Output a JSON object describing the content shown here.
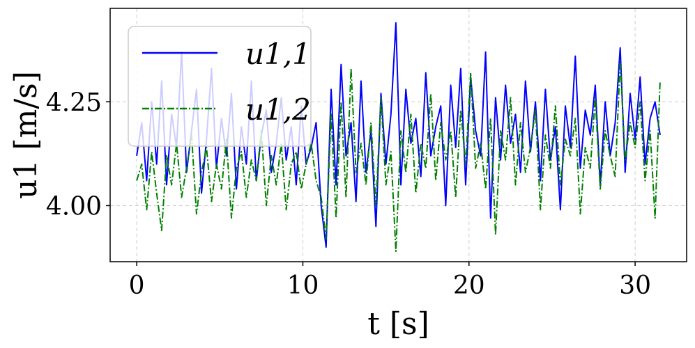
{
  "chart_data": {
    "type": "line",
    "title": "",
    "xlabel": "t [s]",
    "ylabel": "u1 [m/s]",
    "xlim": [
      -1.6,
      33.1
    ],
    "ylim": [
      3.865,
      4.475
    ],
    "x_ticks": [
      0,
      10,
      20,
      30
    ],
    "x_tick_labels": [
      "0",
      "10",
      "20",
      "30"
    ],
    "y_ticks": [
      4.0,
      4.25
    ],
    "y_tick_labels": [
      "4.00",
      "4.25"
    ],
    "grid": true,
    "legend_position": "upper-left",
    "series": [
      {
        "name": "u1,1",
        "color": "#0000ff",
        "style": "solid",
        "x": [
          0.0,
          0.3,
          0.6,
          0.9,
          1.2,
          1.5,
          1.8,
          2.1,
          2.4,
          2.7,
          3.0,
          3.3,
          3.6,
          3.9,
          4.2,
          4.5,
          4.8,
          5.1,
          5.4,
          5.7,
          6.0,
          6.3,
          6.6,
          6.9,
          7.2,
          7.5,
          7.8,
          8.1,
          8.4,
          8.7,
          9.0,
          9.3,
          9.6,
          9.9,
          10.2,
          10.5,
          10.8,
          11.1,
          11.4,
          11.7,
          12.0,
          12.3,
          12.6,
          12.9,
          13.2,
          13.5,
          13.8,
          14.1,
          14.4,
          14.7,
          15.0,
          15.3,
          15.6,
          15.9,
          16.2,
          16.5,
          16.8,
          17.1,
          17.4,
          17.7,
          18.0,
          18.3,
          18.6,
          18.9,
          19.2,
          19.5,
          19.8,
          20.1,
          20.4,
          20.7,
          21.0,
          21.3,
          21.6,
          21.9,
          22.2,
          22.5,
          22.8,
          23.1,
          23.4,
          23.7,
          24.0,
          24.3,
          24.6,
          24.9,
          25.2,
          25.5,
          25.8,
          26.1,
          26.4,
          26.7,
          27.0,
          27.3,
          27.6,
          27.9,
          28.2,
          28.5,
          28.8,
          29.1,
          29.4,
          29.7,
          30.0,
          30.3,
          30.6,
          30.9,
          31.2,
          31.5
        ],
        "y": [
          4.12,
          4.2,
          4.06,
          4.25,
          4.1,
          4.3,
          4.05,
          4.22,
          4.14,
          4.37,
          4.08,
          4.18,
          4.28,
          4.03,
          4.16,
          4.33,
          4.09,
          4.21,
          4.12,
          4.27,
          4.04,
          4.19,
          4.1,
          4.3,
          4.06,
          4.17,
          4.23,
          4.08,
          4.15,
          4.26,
          4.11,
          4.19,
          4.05,
          4.24,
          4.1,
          4.14,
          4.2,
          4.0,
          3.9,
          4.28,
          4.05,
          4.34,
          4.12,
          4.2,
          4.01,
          4.3,
          4.08,
          4.18,
          3.95,
          4.27,
          4.1,
          4.22,
          4.44,
          4.05,
          4.28,
          4.15,
          4.21,
          4.07,
          4.32,
          4.12,
          4.19,
          4.24,
          4.0,
          4.29,
          4.14,
          4.33,
          4.05,
          4.31,
          4.18,
          4.12,
          4.37,
          3.97,
          4.26,
          4.11,
          4.29,
          4.15,
          4.22,
          4.08,
          4.3,
          4.13,
          4.25,
          4.06,
          4.28,
          4.11,
          4.19,
          3.99,
          4.24,
          4.14,
          4.36,
          4.09,
          4.23,
          4.17,
          4.29,
          4.05,
          4.25,
          4.12,
          4.2,
          4.38,
          4.08,
          4.27,
          4.16,
          4.31,
          4.1,
          4.21,
          4.25,
          4.17
        ]
      },
      {
        "name": "u1,2",
        "color": "#008000",
        "style": "dashdot",
        "x": [
          0.0,
          0.3,
          0.6,
          0.9,
          1.2,
          1.5,
          1.8,
          2.1,
          2.4,
          2.7,
          3.0,
          3.3,
          3.6,
          3.9,
          4.2,
          4.5,
          4.8,
          5.1,
          5.4,
          5.7,
          6.0,
          6.3,
          6.6,
          6.9,
          7.2,
          7.5,
          7.8,
          8.1,
          8.4,
          8.7,
          9.0,
          9.3,
          9.6,
          9.9,
          10.2,
          10.5,
          10.8,
          11.1,
          11.4,
          11.7,
          12.0,
          12.3,
          12.6,
          12.9,
          13.2,
          13.5,
          13.8,
          14.1,
          14.4,
          14.7,
          15.0,
          15.3,
          15.6,
          15.9,
          16.2,
          16.5,
          16.8,
          17.1,
          17.4,
          17.7,
          18.0,
          18.3,
          18.6,
          18.9,
          19.2,
          19.5,
          19.8,
          20.1,
          20.4,
          20.7,
          21.0,
          21.3,
          21.6,
          21.9,
          22.2,
          22.5,
          22.8,
          23.1,
          23.4,
          23.7,
          24.0,
          24.3,
          24.6,
          24.9,
          25.2,
          25.5,
          25.8,
          26.1,
          26.4,
          26.7,
          27.0,
          27.3,
          27.6,
          27.9,
          28.2,
          28.5,
          28.8,
          29.1,
          29.4,
          29.7,
          30.0,
          30.3,
          30.6,
          30.9,
          31.2,
          31.5
        ],
        "y": [
          4.06,
          4.1,
          3.99,
          4.13,
          4.03,
          3.94,
          4.12,
          4.05,
          4.15,
          4.02,
          4.09,
          4.17,
          3.98,
          4.08,
          4.14,
          4.01,
          4.1,
          4.04,
          4.16,
          3.97,
          4.09,
          4.13,
          4.02,
          4.11,
          4.06,
          4.18,
          4.0,
          4.12,
          4.05,
          4.15,
          3.99,
          4.1,
          4.13,
          4.04,
          4.1,
          4.15,
          4.06,
          4.02,
          3.92,
          4.22,
          3.97,
          4.25,
          4.02,
          4.33,
          4.08,
          4.15,
          4.05,
          4.2,
          4.0,
          4.26,
          4.05,
          4.13,
          3.89,
          4.18,
          4.08,
          4.22,
          4.03,
          4.15,
          4.09,
          4.27,
          4.06,
          4.2,
          4.11,
          4.18,
          4.02,
          4.23,
          4.1,
          4.32,
          4.09,
          4.15,
          4.04,
          4.21,
          3.93,
          4.18,
          4.11,
          4.26,
          4.05,
          4.2,
          4.08,
          4.14,
          4.23,
          3.99,
          4.17,
          4.09,
          4.24,
          4.05,
          4.16,
          4.12,
          4.21,
          3.98,
          4.14,
          4.09,
          4.26,
          4.04,
          4.18,
          4.12,
          4.07,
          4.35,
          4.11,
          4.2,
          4.14,
          4.25,
          4.06,
          4.18,
          3.97,
          4.3
        ]
      }
    ]
  },
  "legend": {
    "items": [
      {
        "label": "u1,1",
        "color": "#0000ff"
      },
      {
        "label": "u1,2",
        "color": "#008000"
      }
    ]
  }
}
